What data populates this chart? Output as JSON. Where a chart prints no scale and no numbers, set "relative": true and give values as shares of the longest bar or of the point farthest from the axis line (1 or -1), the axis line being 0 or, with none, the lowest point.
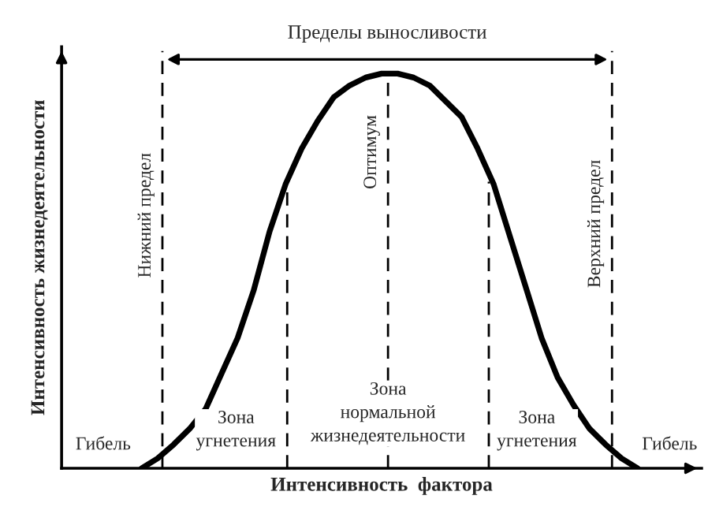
{
  "chart_data": {
    "type": "line",
    "relative": true,
    "xlabel": "Интенсивность  фактора",
    "ylabel": "Интенсивность жизнедеятельности",
    "categories": [
      null,
      null,
      null,
      null,
      null,
      null,
      null,
      null,
      null,
      null,
      null,
      null,
      null,
      null,
      null,
      null,
      null,
      null,
      null,
      null,
      null,
      null,
      null,
      null,
      null,
      null,
      null,
      null,
      null,
      null,
      null,
      null,
      null,
      null,
      null,
      null,
      null,
      null,
      null,
      null,
      null
    ],
    "series": [
      {
        "color": "#000000",
        "values": [
          null,
          null,
          null,
          null,
          null,
          0,
          0.025,
          0.06,
          0.1,
          0.15,
          0.24,
          0.33,
          0.45,
          0.6,
          0.72,
          0.81,
          0.88,
          0.94,
          0.97,
          0.99,
          1.0,
          1.0,
          0.99,
          0.97,
          0.93,
          0.89,
          0.81,
          0.72,
          0.59,
          0.46,
          0.33,
          0.23,
          0.16,
          0.1,
          0.06,
          0.025,
          0,
          null,
          null,
          null,
          null
        ]
      }
    ],
    "line_style": "solid",
    "marker": "none",
    "annotations": [
      "Пределы выносливости",
      "Гибель",
      "Зона\nугнетения",
      "Зона\nнормальной\nжизнедеятельности",
      "Зона\nугнетения",
      "Гибель",
      "Нижний предел",
      "Оптимум",
      "Верхний предел"
    ]
  }
}
